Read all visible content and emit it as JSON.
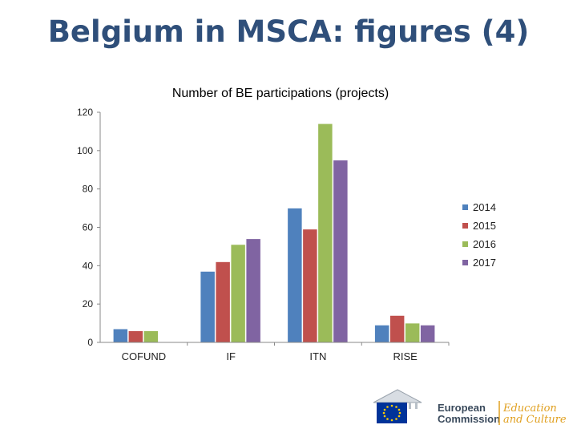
{
  "slide": {
    "title": "Belgium in MSCA: figures (4)"
  },
  "chart_data": {
    "type": "bar",
    "title": "Number of BE participations (projects)",
    "categories": [
      "COFUND",
      "IF",
      "ITN",
      "RISE"
    ],
    "series": [
      {
        "name": "2014",
        "color": "#4f81bd",
        "values": [
          7,
          37,
          70,
          9
        ]
      },
      {
        "name": "2015",
        "color": "#c0504d",
        "values": [
          6,
          42,
          59,
          14
        ]
      },
      {
        "name": "2016",
        "color": "#9bbb59",
        "values": [
          6,
          51,
          114,
          10
        ]
      },
      {
        "name": "2017",
        "color": "#8064a2",
        "values": [
          0,
          54,
          95,
          9
        ]
      }
    ],
    "ylim": [
      0,
      120
    ],
    "yticks": [
      0,
      20,
      40,
      60,
      80,
      100,
      120
    ],
    "xlabel": "",
    "ylabel": "",
    "legend": "right"
  },
  "footer": {
    "logo_org": [
      "European",
      "Commission"
    ],
    "logo_dept": [
      "Education",
      "and Culture"
    ]
  }
}
